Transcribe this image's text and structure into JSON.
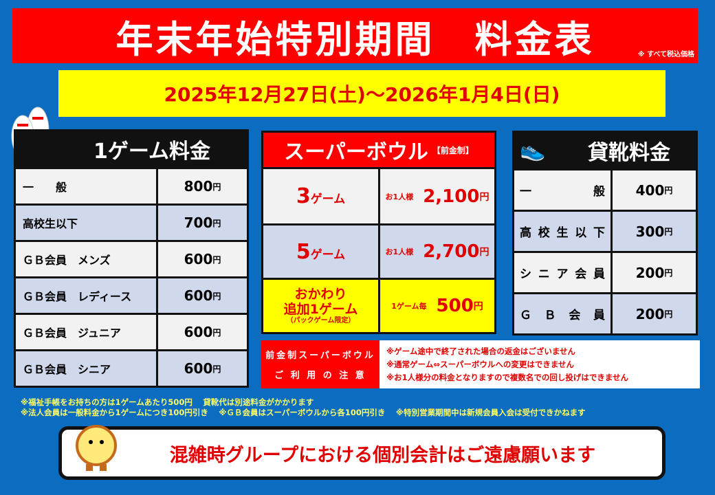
{
  "title": "年末年始特別期間　料金表",
  "tax_note": "※ すべて税込価格",
  "period": "2025年12月27日(土)〜2026年1月4日(日)",
  "game_fee": {
    "header": "1ゲーム料金",
    "rows": [
      {
        "label": "一　　般",
        "price": "800",
        "unit": "円"
      },
      {
        "label": "高校生以下",
        "price": "700",
        "unit": "円"
      },
      {
        "label": "ＧＢ会員　メンズ",
        "price": "600",
        "unit": "円"
      },
      {
        "label": "ＧＢ会員　レディース",
        "price": "600",
        "unit": "円"
      },
      {
        "label": "ＧＢ会員　ジュニア",
        "price": "600",
        "unit": "円"
      },
      {
        "label": "ＧＢ会員　シニア",
        "price": "600",
        "unit": "円"
      }
    ]
  },
  "super_bowl": {
    "header": "スーパーボウル",
    "header_note": "【前金制】",
    "rows": [
      {
        "count": "3",
        "count_unit": "ゲーム",
        "per": "お1人様",
        "price": "2,100",
        "unit": "円"
      },
      {
        "count": "5",
        "count_unit": "ゲーム",
        "per": "お1人様",
        "price": "2,700",
        "unit": "円"
      }
    ],
    "extra": {
      "line1": "おかわり",
      "line2": "追加1ゲーム",
      "note": "（パックゲーム限定）",
      "per": "1ゲーム毎",
      "price": "500",
      "unit": "円"
    }
  },
  "shoes": {
    "header": "貸靴料金",
    "rows": [
      {
        "label": [
          "一",
          "般"
        ],
        "price": "400",
        "unit": "円"
      },
      {
        "label": [
          "高",
          "校",
          "生",
          "以",
          "下"
        ],
        "price": "300",
        "unit": "円"
      },
      {
        "label": [
          "シ",
          "ニ",
          "ア",
          "会",
          "員"
        ],
        "price": "200",
        "unit": "円"
      },
      {
        "label": [
          "Ｇ",
          "Ｂ",
          "会",
          "員"
        ],
        "price": "200",
        "unit": "円"
      }
    ]
  },
  "notice": {
    "label1": "前金制スーパーボウル",
    "label2": "ご 利 用 の 注 意",
    "items": [
      "※ゲーム途中で終了された場合の返金はございません",
      "※通常ゲーム⇔スーパーボウルへの変更はできません",
      "※お1人様分の料金となりますので複数名での回し投げはできません"
    ]
  },
  "footnotes": [
    "※福祉手帳をお持ちの方は1ゲームあたり500円　 貸靴代は別途料金がかかります",
    "※法人会員は一般料金から1ゲームにつき100円引き　 ※ＧＢ会員はスーパーボウルから各100円引き　 ※特別営業期間中は新規会員入会は受付できかねます"
  ],
  "banner": "混雑時グループにおける個別会計はご遠慮願います",
  "colors": {
    "background": "#0b6cc0",
    "red": "#ff0000",
    "yellow": "#ffff00"
  }
}
